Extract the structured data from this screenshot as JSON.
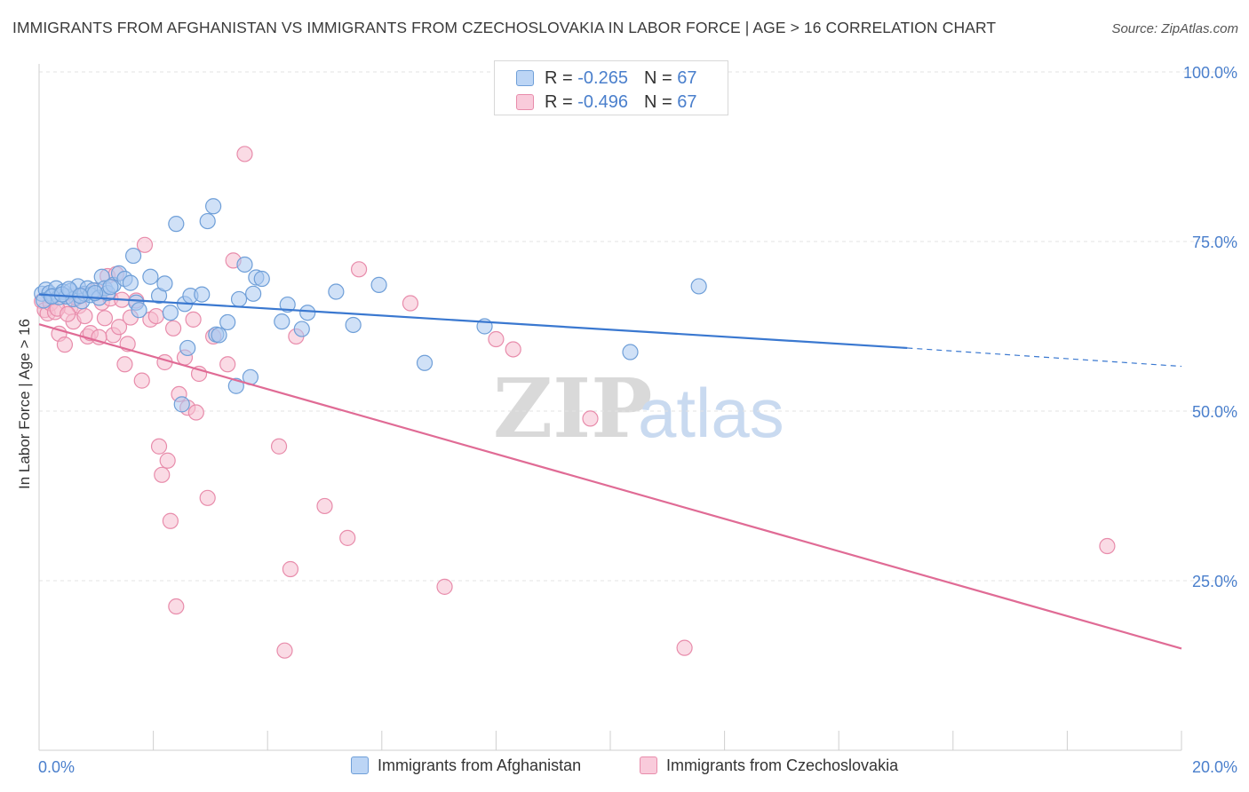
{
  "title": "IMMIGRANTS FROM AFGHANISTAN VS IMMIGRANTS FROM CZECHOSLOVAKIA IN LABOR FORCE | AGE > 16 CORRELATION CHART",
  "source": "Source: ZipAtlas.com",
  "watermark": {
    "part1": "ZIP",
    "part2": "atlas"
  },
  "legend_top": {
    "rows": [
      {
        "r_label": "R = ",
        "r_value": "-0.265",
        "n_label": "N = ",
        "n_value": "67"
      },
      {
        "r_label": "R = ",
        "r_value": "-0.496",
        "n_label": "N = ",
        "n_value": "67"
      }
    ]
  },
  "chart_data": {
    "type": "scatter",
    "title": "IMMIGRANTS FROM AFGHANISTAN VS IMMIGRANTS FROM CZECHOSLOVAKIA IN LABOR FORCE | AGE > 16 CORRELATION CHART",
    "xlabel": "",
    "ylabel": "In Labor Force | Age > 16",
    "xlim": [
      0,
      20
    ],
    "ylim": [
      0,
      105
    ],
    "x_tick_labels": [
      "0.0%",
      "20.0%"
    ],
    "x_tick_values": [
      0,
      20
    ],
    "y_tick_labels": [
      "25.0%",
      "50.0%",
      "75.0%",
      "100.0%"
    ],
    "y_tick_values": [
      25,
      50,
      75,
      100
    ],
    "grid": true,
    "legend_position": "bottom",
    "colors": {
      "afghanistan_fill": "#a9c8f0",
      "afghanistan_stroke": "#6f9fd8",
      "afghanistan_line": "#3a78d0",
      "czech_fill": "#f6bed0",
      "czech_stroke": "#e88cab",
      "czech_line": "#e06b95",
      "tick_label": "#4a7fcc",
      "grid": "#e3e3e3"
    },
    "series": [
      {
        "name": "Immigrants from Afghanistan",
        "r": -0.265,
        "n": 67,
        "trend": {
          "x": [
            0,
            15.2
          ],
          "y": [
            67.2,
            59.3
          ],
          "dash_to": [
            20,
            56.6
          ]
        },
        "points": [
          [
            0.05,
            67.3
          ],
          [
            0.12,
            67.9
          ],
          [
            0.18,
            67.4
          ],
          [
            0.25,
            67.0
          ],
          [
            0.3,
            68.1
          ],
          [
            0.35,
            66.8
          ],
          [
            0.42,
            67.6
          ],
          [
            0.48,
            66.9
          ],
          [
            0.55,
            67.7
          ],
          [
            0.6,
            66.5
          ],
          [
            0.68,
            68.4
          ],
          [
            0.75,
            66.2
          ],
          [
            0.8,
            67.3
          ],
          [
            0.85,
            68.1
          ],
          [
            0.9,
            67.1
          ],
          [
            0.95,
            67.8
          ],
          [
            1.05,
            66.7
          ],
          [
            1.1,
            69.8
          ],
          [
            1.15,
            68.1
          ],
          [
            1.2,
            67.4
          ],
          [
            1.3,
            68.6
          ],
          [
            1.4,
            70.3
          ],
          [
            1.5,
            69.5
          ],
          [
            1.6,
            68.9
          ],
          [
            1.65,
            72.9
          ],
          [
            1.7,
            66.0
          ],
          [
            1.75,
            64.9
          ],
          [
            1.95,
            69.8
          ],
          [
            2.1,
            67.0
          ],
          [
            2.2,
            68.8
          ],
          [
            2.3,
            64.5
          ],
          [
            2.4,
            77.6
          ],
          [
            2.5,
            51.0
          ],
          [
            2.55,
            65.8
          ],
          [
            2.6,
            59.3
          ],
          [
            2.65,
            67.0
          ],
          [
            2.85,
            67.2
          ],
          [
            2.95,
            78.0
          ],
          [
            3.05,
            80.2
          ],
          [
            3.1,
            61.3
          ],
          [
            3.15,
            61.2
          ],
          [
            3.3,
            63.1
          ],
          [
            3.45,
            53.7
          ],
          [
            3.5,
            66.5
          ],
          [
            3.6,
            71.6
          ],
          [
            3.7,
            55.0
          ],
          [
            3.75,
            67.3
          ],
          [
            3.8,
            69.7
          ],
          [
            3.9,
            69.5
          ],
          [
            4.25,
            63.2
          ],
          [
            4.35,
            65.7
          ],
          [
            4.6,
            62.1
          ],
          [
            4.7,
            64.5
          ],
          [
            5.2,
            67.6
          ],
          [
            5.5,
            62.7
          ],
          [
            5.95,
            68.6
          ],
          [
            6.75,
            57.1
          ],
          [
            7.8,
            62.5
          ],
          [
            10.35,
            58.7
          ],
          [
            11.55,
            68.4
          ],
          [
            0.08,
            66.3
          ],
          [
            0.22,
            66.9
          ],
          [
            0.4,
            67.2
          ],
          [
            0.52,
            68.0
          ],
          [
            0.72,
            67.0
          ],
          [
            0.98,
            67.4
          ],
          [
            1.25,
            68.3
          ]
        ]
      },
      {
        "name": "Immigrants from Czechoslovakia",
        "r": -0.496,
        "n": 67,
        "trend": {
          "x": [
            0,
            20
          ],
          "y": [
            62.8,
            15.0
          ]
        },
        "points": [
          [
            0.05,
            66.2
          ],
          [
            0.1,
            64.9
          ],
          [
            0.15,
            64.4
          ],
          [
            0.2,
            65.9
          ],
          [
            0.28,
            64.6
          ],
          [
            0.35,
            61.4
          ],
          [
            0.45,
            59.8
          ],
          [
            0.55,
            65.3
          ],
          [
            0.6,
            63.2
          ],
          [
            0.7,
            65.5
          ],
          [
            0.75,
            67.1
          ],
          [
            0.8,
            64.0
          ],
          [
            0.85,
            61.0
          ],
          [
            0.9,
            61.5
          ],
          [
            1.0,
            67.8
          ],
          [
            1.1,
            66.0
          ],
          [
            1.15,
            63.7
          ],
          [
            1.2,
            69.9
          ],
          [
            1.25,
            66.6
          ],
          [
            1.3,
            61.2
          ],
          [
            1.35,
            70.2
          ],
          [
            1.4,
            62.4
          ],
          [
            1.5,
            56.9
          ],
          [
            1.55,
            59.9
          ],
          [
            1.6,
            63.8
          ],
          [
            1.7,
            66.3
          ],
          [
            1.8,
            54.5
          ],
          [
            1.85,
            74.5
          ],
          [
            1.95,
            63.5
          ],
          [
            2.05,
            64.0
          ],
          [
            2.1,
            44.8
          ],
          [
            2.15,
            40.6
          ],
          [
            2.2,
            57.2
          ],
          [
            2.25,
            42.7
          ],
          [
            2.3,
            33.8
          ],
          [
            2.35,
            62.2
          ],
          [
            2.4,
            21.2
          ],
          [
            2.45,
            52.5
          ],
          [
            2.55,
            57.9
          ],
          [
            2.6,
            50.5
          ],
          [
            2.7,
            63.5
          ],
          [
            2.75,
            49.8
          ],
          [
            2.8,
            55.5
          ],
          [
            2.95,
            37.2
          ],
          [
            3.05,
            61.0
          ],
          [
            3.3,
            56.9
          ],
          [
            3.4,
            72.2
          ],
          [
            3.6,
            87.9
          ],
          [
            4.2,
            44.8
          ],
          [
            4.3,
            14.7
          ],
          [
            4.4,
            26.7
          ],
          [
            4.5,
            61.0
          ],
          [
            5.0,
            36.0
          ],
          [
            5.4,
            31.3
          ],
          [
            5.6,
            70.9
          ],
          [
            6.5,
            65.9
          ],
          [
            7.1,
            24.1
          ],
          [
            8.0,
            60.6
          ],
          [
            8.3,
            59.1
          ],
          [
            9.65,
            48.9
          ],
          [
            11.3,
            15.1
          ],
          [
            18.7,
            30.1
          ],
          [
            0.32,
            65.1
          ],
          [
            0.5,
            64.3
          ],
          [
            0.65,
            66.7
          ],
          [
            1.05,
            60.9
          ],
          [
            1.45,
            66.4
          ]
        ]
      }
    ]
  },
  "legend_bottom": {
    "items": [
      {
        "label": "Immigrants from Afghanistan"
      },
      {
        "label": "Immigrants from Czechoslovakia"
      }
    ]
  }
}
